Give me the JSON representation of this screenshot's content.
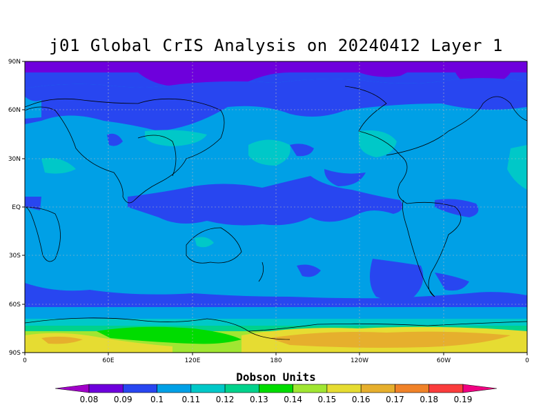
{
  "title": "j01 Global CrIS Analysis on 20240412 Layer 1",
  "units": "Dobson Units",
  "lat_ticks": [
    "90N",
    "60N",
    "30N",
    "EQ",
    "30S",
    "60S",
    "90S"
  ],
  "lon_ticks": [
    "0",
    "60E",
    "120E",
    "180",
    "120W",
    "60W",
    "0"
  ],
  "colorbar": {
    "colors": [
      "#a000c8",
      "#6e00dc",
      "#2846f0",
      "#00a0e6",
      "#00c8c8",
      "#00d28c",
      "#00dc00",
      "#a0e632",
      "#e6dc32",
      "#e6af2d",
      "#f08228",
      "#fa3c3c",
      "#f00082"
    ],
    "labels": [
      "0.08",
      "0.09",
      "0.1",
      "0.11",
      "0.12",
      "0.13",
      "0.14",
      "0.15",
      "0.16",
      "0.17",
      "0.18",
      "0.19"
    ]
  }
}
